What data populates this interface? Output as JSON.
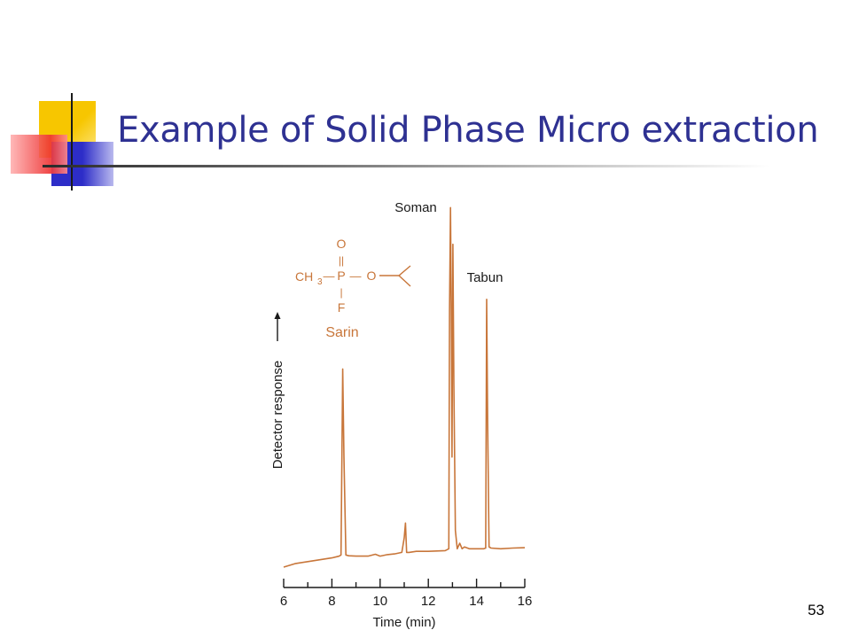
{
  "slide": {
    "title": "Example of Solid Phase Micro extraction",
    "page_number": "53"
  },
  "colors": {
    "title": "#2e3192",
    "trace": "#c8763a",
    "axis": "#1a1a1a",
    "deco_yellow": "#f7c600",
    "deco_blue": "#2d2dc8",
    "deco_red": "#ee3333"
  },
  "chart_data": {
    "type": "line",
    "xlabel": "Time (min)",
    "ylabel": "Detector response",
    "xlim": [
      6,
      16
    ],
    "xticks": [
      6,
      8,
      10,
      12,
      14,
      16
    ],
    "ylim": [
      0,
      100
    ],
    "grid": false,
    "series": [
      {
        "x": [
          6.0,
          6.5,
          7.0,
          7.5,
          8.0,
          8.3,
          8.38,
          8.45,
          8.5,
          8.58,
          8.7,
          9.0,
          9.5,
          9.8,
          10.0,
          10.3,
          10.6,
          10.9,
          11.0,
          11.05,
          11.1,
          11.2,
          11.5,
          12.0,
          12.7,
          12.85,
          12.88,
          12.92,
          12.95,
          12.98,
          13.02,
          13.06,
          13.12,
          13.2,
          13.3,
          13.4,
          13.5,
          13.7,
          14.0,
          14.3,
          14.38,
          14.42,
          14.46,
          14.52,
          14.6,
          15.0,
          15.5,
          16.0
        ],
        "y": [
          0.0,
          1.0,
          1.5,
          2.0,
          2.5,
          3.0,
          3.3,
          54.0,
          30.0,
          3.3,
          3.1,
          3.0,
          3.0,
          3.5,
          3.0,
          3.4,
          3.6,
          4.0,
          8.0,
          12.0,
          4.0,
          4.0,
          4.3,
          4.3,
          4.5,
          5.0,
          70.0,
          98.0,
          72.0,
          30.0,
          88.0,
          50.0,
          10.0,
          5.0,
          6.5,
          5.0,
          5.5,
          5.0,
          5.0,
          5.0,
          5.2,
          73.0,
          40.0,
          5.5,
          5.2,
          5.0,
          5.2,
          5.3
        ]
      }
    ],
    "annotations": [
      {
        "label": "Soman",
        "x": 12.92,
        "y": 98
      },
      {
        "label": "Tabun",
        "x": 14.42,
        "y": 73
      },
      {
        "label": "Sarin",
        "x": 8.45,
        "y": 54
      }
    ],
    "structure": {
      "o_top": "O",
      "double_bond": "||",
      "ch3": "CH",
      "ch3_sub": "3",
      "bond": "—",
      "p": "P",
      "o_right": "O",
      "single_bond": "|",
      "f": "F"
    }
  }
}
